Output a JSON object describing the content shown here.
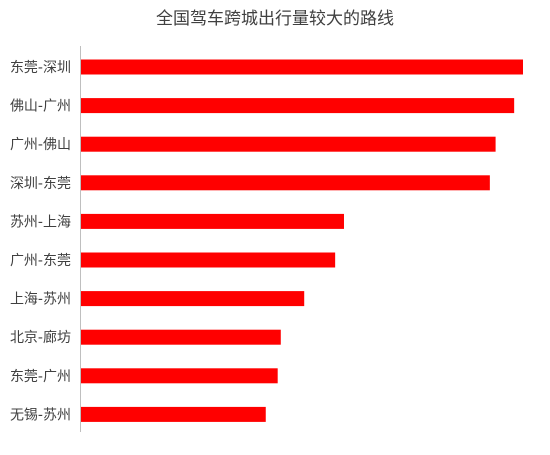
{
  "chart_data": {
    "type": "bar",
    "orientation": "horizontal",
    "title": "全国驾车跨城出行量较大的路线",
    "categories": [
      "东莞-深圳",
      "佛山-广州",
      "广州-佛山",
      "深圳-东莞",
      "苏州-上海",
      "广州-东莞",
      "上海-苏州",
      "北京-廊坊",
      "东莞-广州",
      "无锡-苏州"
    ],
    "values": [
      100,
      98,
      93.8,
      92.5,
      59.5,
      57.5,
      50.5,
      45.2,
      44.5,
      41.8
    ],
    "xlim": [
      0,
      100
    ],
    "bar_color": "#ff0000",
    "axis_color": "#bfbfbf",
    "grid": false,
    "legend": false,
    "value_labels": false
  }
}
